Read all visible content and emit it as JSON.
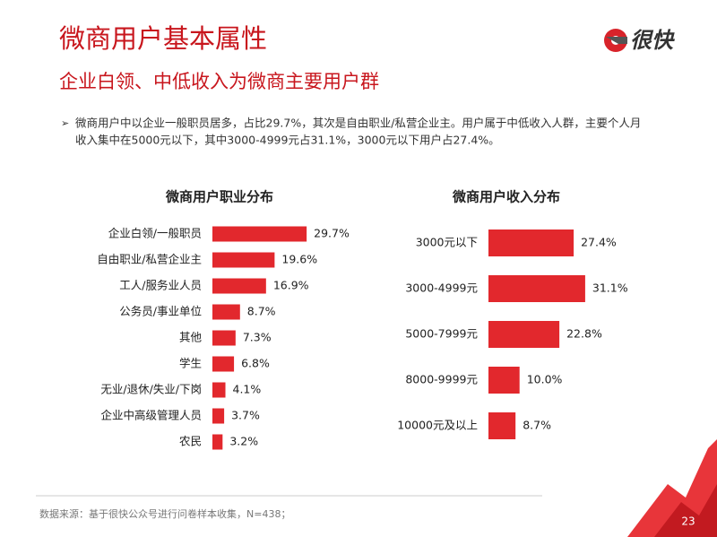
{
  "header": {
    "title": "微商用户基本属性",
    "subtitle": "企业白领、中低收入为微商主要用户群",
    "logo": "很快"
  },
  "note": [
    "微商用户中以企业一般职员居多，占比29.7%，其次是自由职业/私营企业主。用户属于中低收入人群，主要个人月",
    "收入集中在5000元以下，其中3000-4999元占31.1%，3000元以下用户占27.4%。"
  ],
  "chart_data": [
    {
      "type": "barh",
      "title": "微商用户职业分布",
      "color": "#e2282d",
      "categories": [
        "企业白领/一般职员",
        "自由职业/私营企业主",
        "工人/服务业人员",
        "公务员/事业单位",
        "其他",
        "学生",
        "无业/退休/失业/下岗",
        "企业中高级管理人员",
        "农民"
      ],
      "values": [
        29.7,
        19.6,
        16.9,
        8.7,
        7.3,
        6.8,
        4.1,
        3.7,
        3.2
      ],
      "value_labels": [
        "29.7%",
        "19.6%",
        "16.9%",
        "8.7%",
        "7.3%",
        "6.8%",
        "4.1%",
        "3.7%",
        "3.2%"
      ]
    },
    {
      "type": "barh",
      "title": "微商用户收入分布",
      "color": "#e2282d",
      "categories": [
        "3000元以下",
        "3000-4999元",
        "5000-7999元",
        "8000-9999元",
        "10000元及以上"
      ],
      "values": [
        27.4,
        31.1,
        22.8,
        10.0,
        8.7
      ],
      "value_labels": [
        "27.4%",
        "31.1%",
        "22.8%",
        "10.0%",
        "8.7%"
      ]
    }
  ],
  "source": "数据来源：基于很快公众号进行问卷样本收集，N=438；",
  "page_number": "23"
}
